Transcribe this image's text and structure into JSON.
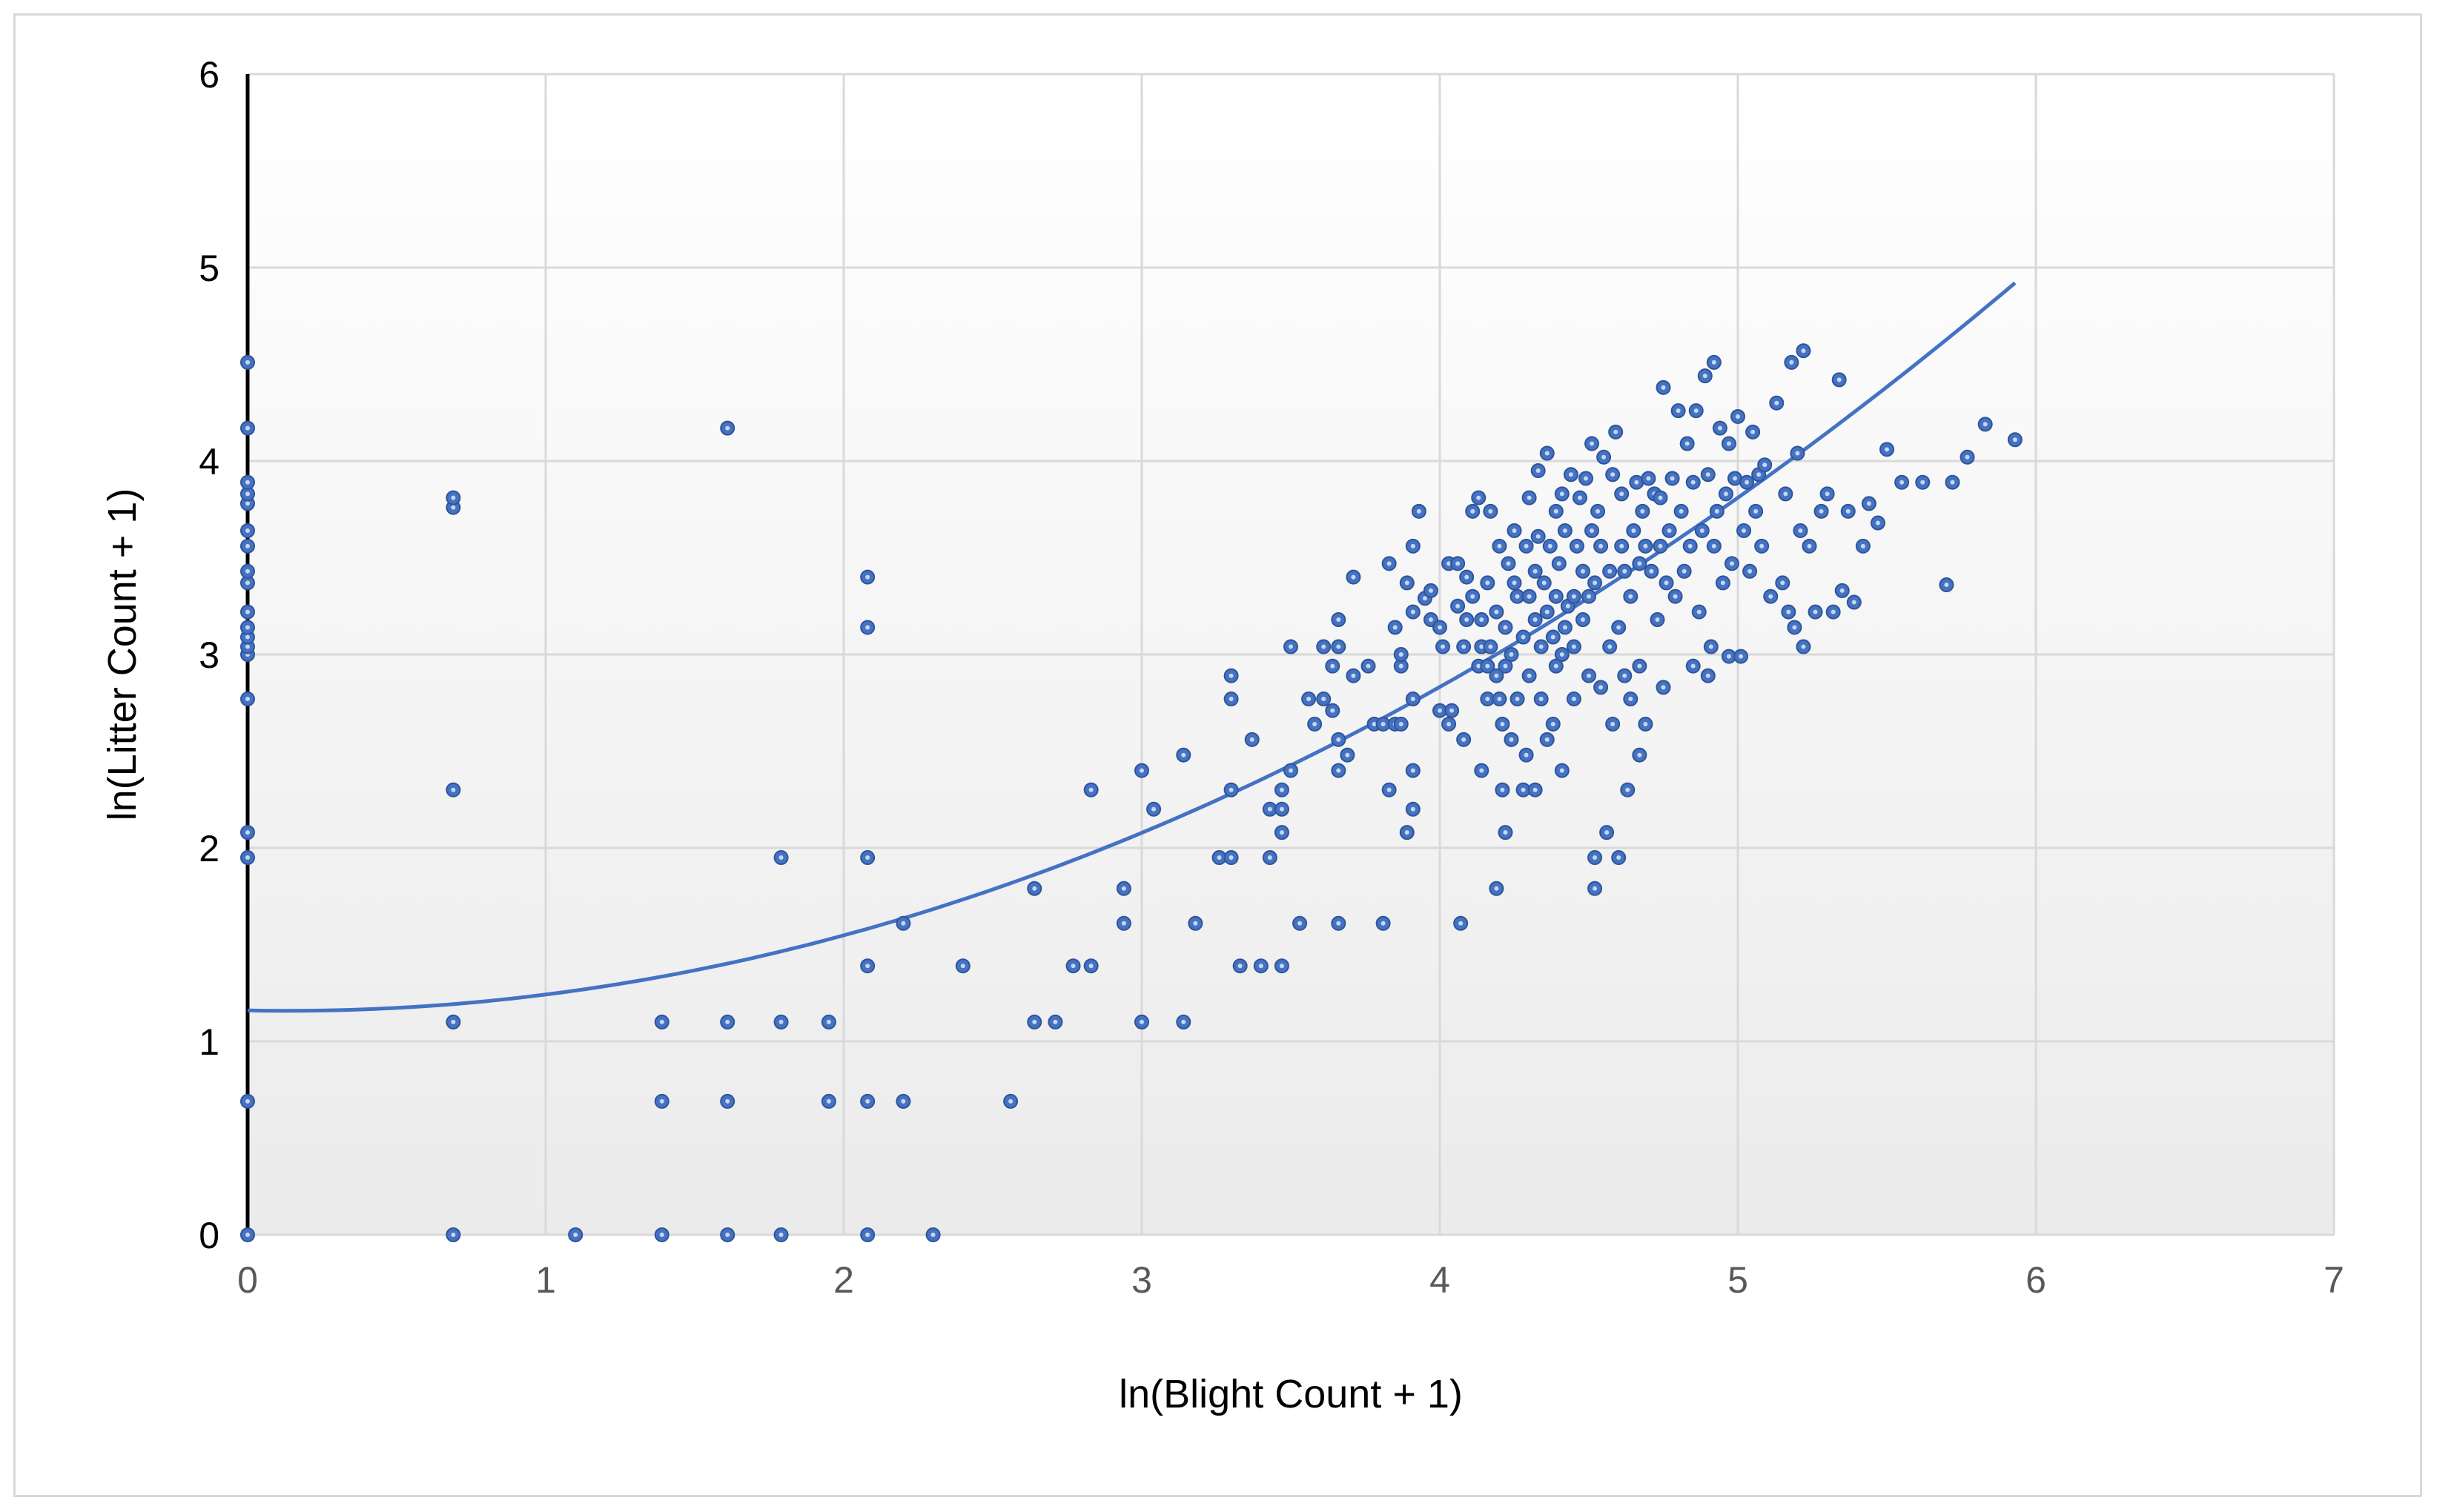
{
  "chart_data": {
    "type": "scatter",
    "title": "",
    "xlabel": "ln(Blight Count + 1)",
    "ylabel": "ln(Litter Count + 1)",
    "xlim": [
      0,
      7
    ],
    "ylim": [
      0,
      6
    ],
    "x_ticks": [
      "0",
      "1",
      "2",
      "3",
      "4",
      "5",
      "6",
      "7"
    ],
    "y_ticks": [
      "0",
      "1",
      "2",
      "3",
      "4",
      "5",
      "6"
    ],
    "grid": true,
    "legend": "none",
    "colors": {
      "marker": "#4472c4",
      "marker_edge": "#2f5597",
      "trendline": "#4472c4",
      "grid": "#d9d9d9",
      "plot_background_bottom": "#ebebeb"
    },
    "trendline": {
      "type": "polynomial",
      "order": 2,
      "coefficients": [
        1.16,
        -0.03,
        0.112
      ],
      "x_range": [
        0,
        5.93
      ]
    },
    "series": [
      {
        "points": [
          [
            0,
            0
          ],
          [
            0,
            0.69
          ],
          [
            0,
            1.95
          ],
          [
            0,
            2.08
          ],
          [
            0,
            2.77
          ],
          [
            0,
            3.0
          ],
          [
            0,
            3.04
          ],
          [
            0,
            3.09
          ],
          [
            0,
            3.14
          ],
          [
            0,
            3.22
          ],
          [
            0,
            3.37
          ],
          [
            0,
            3.43
          ],
          [
            0,
            3.56
          ],
          [
            0,
            3.64
          ],
          [
            0,
            3.78
          ],
          [
            0,
            3.83
          ],
          [
            0,
            3.89
          ],
          [
            0,
            4.17
          ],
          [
            0,
            4.51
          ],
          [
            0.69,
            0
          ],
          [
            0.69,
            1.1
          ],
          [
            0.69,
            2.3
          ],
          [
            0.69,
            3.76
          ],
          [
            0.69,
            3.81
          ],
          [
            1.1,
            0
          ],
          [
            1.39,
            0
          ],
          [
            1.39,
            0.69
          ],
          [
            1.39,
            1.1
          ],
          [
            1.61,
            0
          ],
          [
            1.61,
            0.69
          ],
          [
            1.61,
            1.1
          ],
          [
            1.61,
            4.17
          ],
          [
            1.79,
            0
          ],
          [
            1.79,
            1.1
          ],
          [
            1.79,
            1.95
          ],
          [
            1.95,
            0.69
          ],
          [
            1.95,
            1.1
          ],
          [
            2.08,
            0
          ],
          [
            2.08,
            0.69
          ],
          [
            2.08,
            1.39
          ],
          [
            2.08,
            1.95
          ],
          [
            2.08,
            3.14
          ],
          [
            2.08,
            3.4
          ],
          [
            2.2,
            0.69
          ],
          [
            2.2,
            1.61
          ],
          [
            2.3,
            0
          ],
          [
            2.4,
            1.39
          ],
          [
            2.56,
            0.69
          ],
          [
            2.64,
            1.1
          ],
          [
            2.64,
            1.79
          ],
          [
            2.71,
            1.1
          ],
          [
            2.77,
            1.39
          ],
          [
            2.83,
            1.39
          ],
          [
            2.83,
            2.3
          ],
          [
            2.94,
            1.61
          ],
          [
            2.94,
            1.79
          ],
          [
            3.0,
            1.1
          ],
          [
            3.0,
            2.4
          ],
          [
            3.04,
            2.2
          ],
          [
            3.14,
            1.1
          ],
          [
            3.14,
            2.48
          ],
          [
            3.18,
            1.61
          ],
          [
            3.26,
            1.95
          ],
          [
            3.3,
            1.95
          ],
          [
            3.3,
            2.3
          ],
          [
            3.3,
            2.77
          ],
          [
            3.3,
            2.89
          ],
          [
            3.33,
            1.39
          ],
          [
            3.37,
            2.56
          ],
          [
            3.4,
            1.39
          ],
          [
            3.43,
            1.95
          ],
          [
            3.43,
            2.2
          ],
          [
            3.47,
            1.39
          ],
          [
            3.47,
            2.08
          ],
          [
            3.47,
            2.2
          ],
          [
            3.47,
            2.3
          ],
          [
            3.5,
            2.4
          ],
          [
            3.5,
            3.04
          ],
          [
            3.53,
            1.61
          ],
          [
            3.56,
            2.77
          ],
          [
            3.58,
            2.64
          ],
          [
            3.61,
            2.77
          ],
          [
            3.61,
            3.04
          ],
          [
            3.64,
            2.71
          ],
          [
            3.64,
            2.94
          ],
          [
            3.66,
            1.61
          ],
          [
            3.66,
            2.4
          ],
          [
            3.66,
            2.56
          ],
          [
            3.66,
            3.04
          ],
          [
            3.66,
            3.18
          ],
          [
            3.69,
            2.48
          ],
          [
            3.71,
            2.89
          ],
          [
            3.71,
            3.4
          ],
          [
            3.76,
            2.94
          ],
          [
            3.78,
            2.64
          ],
          [
            3.81,
            1.61
          ],
          [
            3.81,
            2.64
          ],
          [
            3.83,
            2.3
          ],
          [
            3.83,
            3.47
          ],
          [
            3.85,
            2.64
          ],
          [
            3.85,
            3.14
          ],
          [
            3.87,
            2.64
          ],
          [
            3.87,
            2.94
          ],
          [
            3.87,
            3.0
          ],
          [
            3.89,
            2.08
          ],
          [
            3.89,
            3.37
          ],
          [
            3.91,
            2.2
          ],
          [
            3.91,
            2.4
          ],
          [
            3.91,
            2.77
          ],
          [
            3.91,
            3.22
          ],
          [
            3.91,
            3.56
          ],
          [
            3.93,
            3.74
          ],
          [
            3.95,
            3.29
          ],
          [
            3.97,
            3.18
          ],
          [
            3.97,
            3.33
          ],
          [
            4.0,
            2.71
          ],
          [
            4.0,
            3.14
          ],
          [
            4.01,
            3.04
          ],
          [
            4.03,
            2.64
          ],
          [
            4.03,
            3.47
          ],
          [
            4.04,
            2.71
          ],
          [
            4.06,
            3.25
          ],
          [
            4.06,
            3.47
          ],
          [
            4.07,
            1.61
          ],
          [
            4.08,
            2.56
          ],
          [
            4.08,
            3.04
          ],
          [
            4.09,
            3.18
          ],
          [
            4.09,
            3.4
          ],
          [
            4.11,
            3.3
          ],
          [
            4.11,
            3.74
          ],
          [
            4.13,
            2.94
          ],
          [
            4.13,
            3.81
          ],
          [
            4.14,
            2.4
          ],
          [
            4.14,
            3.04
          ],
          [
            4.14,
            3.18
          ],
          [
            4.16,
            2.77
          ],
          [
            4.16,
            2.94
          ],
          [
            4.16,
            3.37
          ],
          [
            4.17,
            3.04
          ],
          [
            4.17,
            3.74
          ],
          [
            4.19,
            1.79
          ],
          [
            4.19,
            2.89
          ],
          [
            4.19,
            3.22
          ],
          [
            4.2,
            2.77
          ],
          [
            4.2,
            3.56
          ],
          [
            4.21,
            2.3
          ],
          [
            4.21,
            2.64
          ],
          [
            4.22,
            2.08
          ],
          [
            4.22,
            2.94
          ],
          [
            4.22,
            3.14
          ],
          [
            4.23,
            3.47
          ],
          [
            4.24,
            2.56
          ],
          [
            4.24,
            3.0
          ],
          [
            4.25,
            3.37
          ],
          [
            4.25,
            3.64
          ],
          [
            4.26,
            2.77
          ],
          [
            4.26,
            3.3
          ],
          [
            4.28,
            2.3
          ],
          [
            4.28,
            3.09
          ],
          [
            4.29,
            2.48
          ],
          [
            4.29,
            3.56
          ],
          [
            4.3,
            2.89
          ],
          [
            4.3,
            3.3
          ],
          [
            4.3,
            3.81
          ],
          [
            4.32,
            2.3
          ],
          [
            4.32,
            3.18
          ],
          [
            4.32,
            3.43
          ],
          [
            4.33,
            3.61
          ],
          [
            4.33,
            3.95
          ],
          [
            4.34,
            2.77
          ],
          [
            4.34,
            3.04
          ],
          [
            4.35,
            3.37
          ],
          [
            4.36,
            2.56
          ],
          [
            4.36,
            3.22
          ],
          [
            4.36,
            4.04
          ],
          [
            4.37,
            3.56
          ],
          [
            4.38,
            2.64
          ],
          [
            4.38,
            3.09
          ],
          [
            4.39,
            2.94
          ],
          [
            4.39,
            3.3
          ],
          [
            4.39,
            3.74
          ],
          [
            4.4,
            3.47
          ],
          [
            4.41,
            2.4
          ],
          [
            4.41,
            3.0
          ],
          [
            4.41,
            3.83
          ],
          [
            4.42,
            3.14
          ],
          [
            4.42,
            3.64
          ],
          [
            4.43,
            3.25
          ],
          [
            4.44,
            3.93
          ],
          [
            4.45,
            2.77
          ],
          [
            4.45,
            3.04
          ],
          [
            4.45,
            3.3
          ],
          [
            4.46,
            3.56
          ],
          [
            4.47,
            3.81
          ],
          [
            4.48,
            3.18
          ],
          [
            4.48,
            3.43
          ],
          [
            4.49,
            3.91
          ],
          [
            4.5,
            2.89
          ],
          [
            4.5,
            3.3
          ],
          [
            4.51,
            3.64
          ],
          [
            4.51,
            4.09
          ],
          [
            4.52,
            1.79
          ],
          [
            4.52,
            1.95
          ],
          [
            4.52,
            3.37
          ],
          [
            4.53,
            3.74
          ],
          [
            4.54,
            2.83
          ],
          [
            4.54,
            3.56
          ],
          [
            4.55,
            4.02
          ],
          [
            4.56,
            2.08
          ],
          [
            4.57,
            3.04
          ],
          [
            4.57,
            3.43
          ],
          [
            4.58,
            2.64
          ],
          [
            4.58,
            3.93
          ],
          [
            4.59,
            4.15
          ],
          [
            4.6,
            1.95
          ],
          [
            4.6,
            3.14
          ],
          [
            4.61,
            3.56
          ],
          [
            4.61,
            3.83
          ],
          [
            4.62,
            2.89
          ],
          [
            4.62,
            3.43
          ],
          [
            4.63,
            2.3
          ],
          [
            4.64,
            2.77
          ],
          [
            4.64,
            3.3
          ],
          [
            4.65,
            3.64
          ],
          [
            4.66,
            3.89
          ],
          [
            4.67,
            2.48
          ],
          [
            4.67,
            2.94
          ],
          [
            4.67,
            3.47
          ],
          [
            4.68,
            3.74
          ],
          [
            4.69,
            2.64
          ],
          [
            4.69,
            3.56
          ],
          [
            4.7,
            3.91
          ],
          [
            4.71,
            3.43
          ],
          [
            4.72,
            3.83
          ],
          [
            4.73,
            3.18
          ],
          [
            4.74,
            3.56
          ],
          [
            4.74,
            3.81
          ],
          [
            4.75,
            2.83
          ],
          [
            4.75,
            4.38
          ],
          [
            4.76,
            3.37
          ],
          [
            4.77,
            3.64
          ],
          [
            4.78,
            3.91
          ],
          [
            4.79,
            3.3
          ],
          [
            4.8,
            4.26
          ],
          [
            4.81,
            3.74
          ],
          [
            4.82,
            3.43
          ],
          [
            4.83,
            4.09
          ],
          [
            4.84,
            3.56
          ],
          [
            4.85,
            2.94
          ],
          [
            4.85,
            3.89
          ],
          [
            4.86,
            4.26
          ],
          [
            4.87,
            3.22
          ],
          [
            4.88,
            3.64
          ],
          [
            4.89,
            4.44
          ],
          [
            4.9,
            2.89
          ],
          [
            4.9,
            3.93
          ],
          [
            4.91,
            3.04
          ],
          [
            4.92,
            3.56
          ],
          [
            4.92,
            4.51
          ],
          [
            4.93,
            3.74
          ],
          [
            4.94,
            4.17
          ],
          [
            4.95,
            3.37
          ],
          [
            4.96,
            3.83
          ],
          [
            4.97,
            2.99
          ],
          [
            4.97,
            4.09
          ],
          [
            4.98,
            3.47
          ],
          [
            4.99,
            3.91
          ],
          [
            5.0,
            4.23
          ],
          [
            5.01,
            2.99
          ],
          [
            5.02,
            3.64
          ],
          [
            5.03,
            3.89
          ],
          [
            5.04,
            3.43
          ],
          [
            5.05,
            4.15
          ],
          [
            5.06,
            3.74
          ],
          [
            5.07,
            3.93
          ],
          [
            5.08,
            3.56
          ],
          [
            5.09,
            3.98
          ],
          [
            5.11,
            3.3
          ],
          [
            5.13,
            4.3
          ],
          [
            5.15,
            3.37
          ],
          [
            5.16,
            3.83
          ],
          [
            5.17,
            3.22
          ],
          [
            5.18,
            4.51
          ],
          [
            5.19,
            3.14
          ],
          [
            5.2,
            4.04
          ],
          [
            5.21,
            3.64
          ],
          [
            5.22,
            3.04
          ],
          [
            5.22,
            4.57
          ],
          [
            5.24,
            3.56
          ],
          [
            5.26,
            3.22
          ],
          [
            5.28,
            3.74
          ],
          [
            5.3,
            3.83
          ],
          [
            5.32,
            3.22
          ],
          [
            5.34,
            4.42
          ],
          [
            5.35,
            3.33
          ],
          [
            5.37,
            3.74
          ],
          [
            5.39,
            3.27
          ],
          [
            5.42,
            3.56
          ],
          [
            5.44,
            3.78
          ],
          [
            5.47,
            3.68
          ],
          [
            5.5,
            4.06
          ],
          [
            5.55,
            3.89
          ],
          [
            5.62,
            3.89
          ],
          [
            5.7,
            3.36
          ],
          [
            5.72,
            3.89
          ],
          [
            5.77,
            4.02
          ],
          [
            5.83,
            4.19
          ],
          [
            5.93,
            4.11
          ]
        ]
      }
    ]
  }
}
